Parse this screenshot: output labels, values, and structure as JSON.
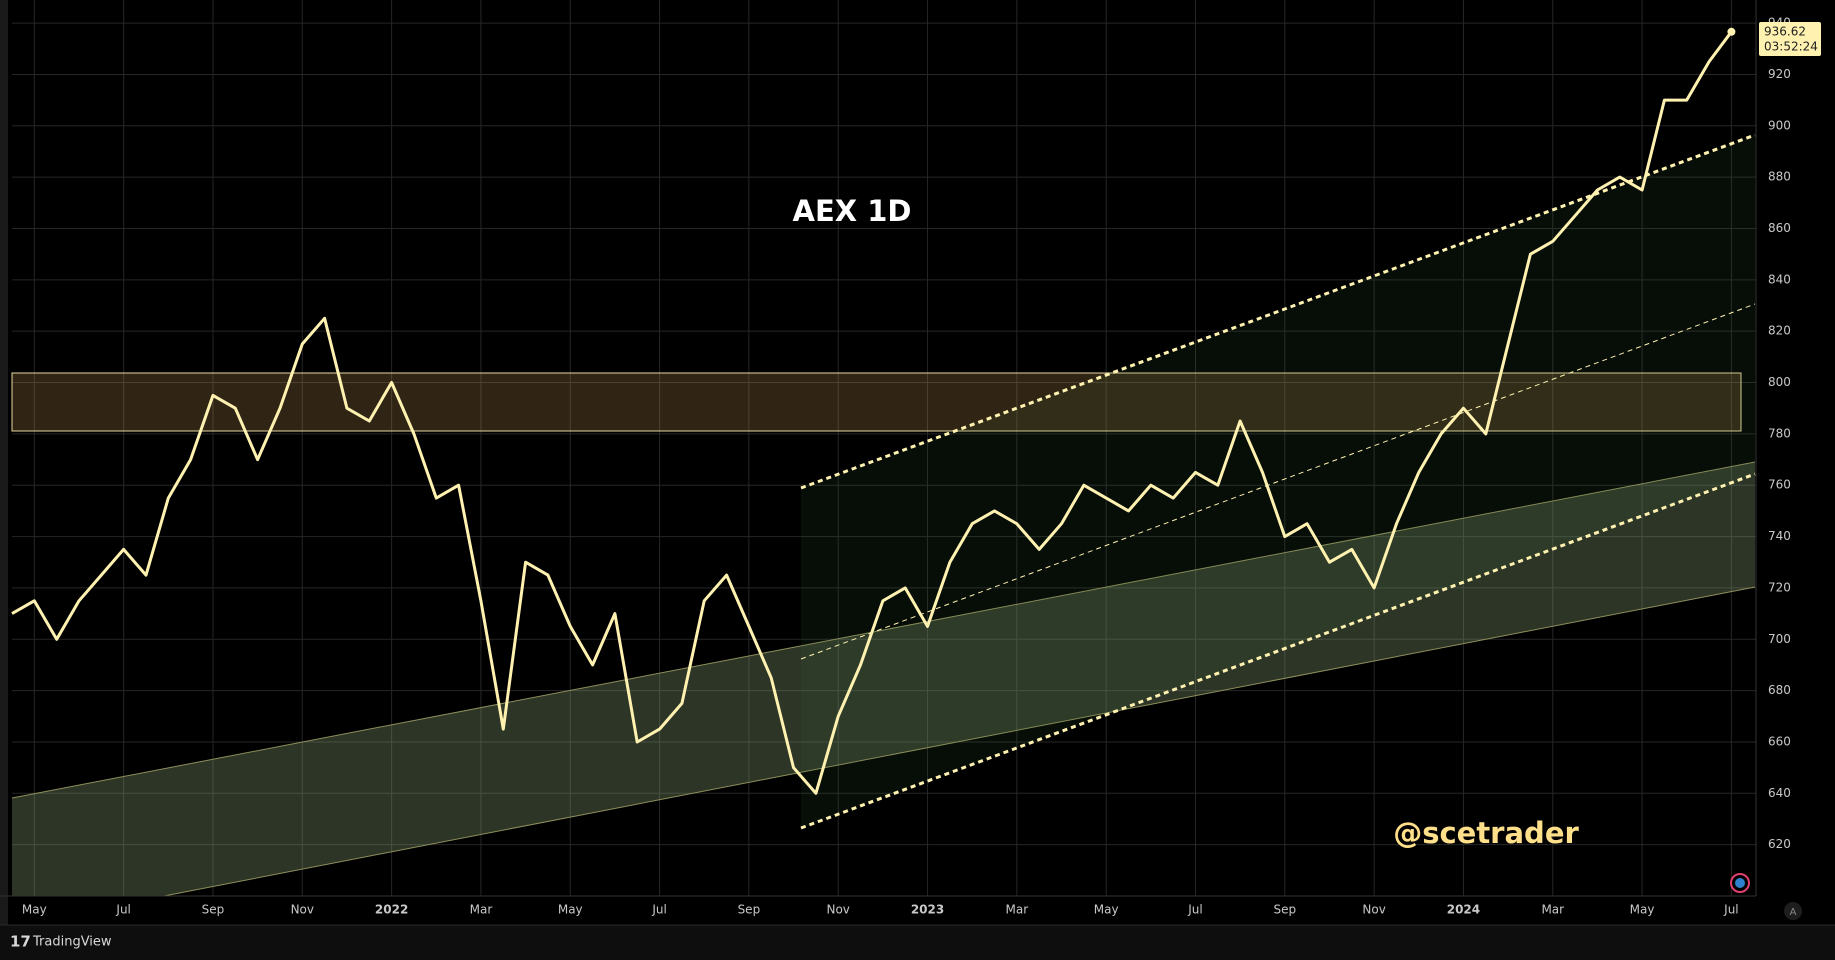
{
  "chart_data": {
    "type": "line",
    "title": "AEX 1D",
    "annotation": "@scetrader",
    "categories": [
      null,
      "May",
      null,
      null,
      null,
      "Jul",
      null,
      null,
      null,
      "Sep",
      null,
      null,
      null,
      "Nov",
      null,
      null,
      null,
      "2022",
      null,
      null,
      null,
      "Mar",
      null,
      null,
      null,
      "May",
      null,
      null,
      null,
      "Jul",
      null,
      null,
      null,
      "Sep",
      null,
      null,
      null,
      "Nov",
      null,
      null,
      null,
      "2023",
      null,
      null,
      null,
      "Mar",
      null,
      null,
      null,
      "May",
      null,
      null,
      null,
      "Jul",
      null,
      null,
      null,
      "Sep",
      null,
      null,
      null,
      "Nov",
      null,
      null,
      null,
      "2024",
      null,
      null,
      null,
      "Mar",
      null,
      null,
      null,
      "May",
      null,
      null,
      null,
      "Jul"
    ],
    "series": [
      {
        "name": "AEX",
        "color": "#fff2b0",
        "values": [
          710,
          715,
          700,
          715,
          725,
          735,
          725,
          755,
          770,
          795,
          790,
          770,
          790,
          815,
          825,
          790,
          785,
          800,
          780,
          755,
          760,
          715,
          665,
          730,
          725,
          705,
          690,
          710,
          660,
          665,
          675,
          715,
          725,
          705,
          685,
          650,
          640,
          670,
          690,
          715,
          720,
          705,
          730,
          745,
          750,
          745,
          735,
          745,
          760,
          755,
          750,
          760,
          755,
          765,
          760,
          785,
          765,
          740,
          745,
          730,
          735,
          720,
          745,
          765,
          780,
          790,
          780,
          815,
          850,
          855,
          865,
          875,
          880,
          875,
          910,
          910,
          925,
          936.62
        ]
      }
    ],
    "ylim": [
      600,
      949
    ],
    "yticks": [
      620,
      640,
      660,
      680,
      700,
      720,
      740,
      760,
      780,
      800,
      820,
      840,
      860,
      880,
      900,
      920,
      940
    ],
    "grid": true,
    "last_price": 936.62,
    "countdown": "03:52:24"
  },
  "branding": "TradingView",
  "scale_mode_button": "A"
}
